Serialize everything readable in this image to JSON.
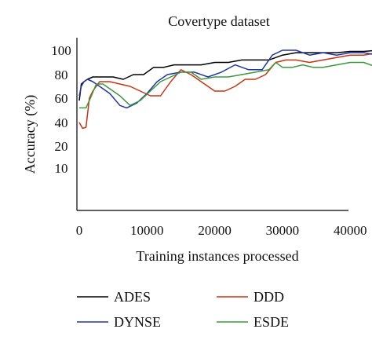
{
  "chart_data": {
    "type": "line",
    "title": "Covertype dataset",
    "xlabel": "Training instances processed",
    "ylabel": "Accuracy (%)",
    "xlim": [
      0,
      50000
    ],
    "ylim": [
      0,
      100
    ],
    "xticks": [
      {
        "value": 0,
        "label": "0"
      },
      {
        "value": 10000,
        "label": "10000"
      },
      {
        "value": 20000,
        "label": "20000"
      },
      {
        "value": 30000,
        "label": "30000"
      },
      {
        "value": 40000,
        "label": "40000"
      }
    ],
    "yticks": [
      {
        "value": 10,
        "label": "10"
      },
      {
        "value": 20,
        "label": "20"
      },
      {
        "value": 40,
        "label": "40"
      },
      {
        "value": 60,
        "label": "60"
      },
      {
        "value": 80,
        "label": "80"
      },
      {
        "value": 100,
        "label": "100"
      }
    ],
    "grid": false,
    "legend_position": "bottom",
    "series": [
      {
        "name": "ADES",
        "color": "#000000",
        "x": [
          0,
          300,
          700,
          1200,
          2000,
          3500,
          5000,
          6500,
          8000,
          9500,
          11000,
          12500,
          14000,
          16000,
          18000,
          20000,
          22000,
          24000,
          26000,
          28000,
          30000,
          32000,
          34000,
          36000,
          38000,
          40000,
          42000,
          44000,
          46000,
          48000,
          49000
        ],
        "y": [
          58,
          72,
          74,
          76,
          78,
          78,
          78,
          76,
          80,
          80,
          86,
          86,
          88,
          88,
          88,
          90,
          90,
          92,
          92,
          92,
          96,
          98,
          98,
          98,
          98,
          99,
          99,
          100,
          100,
          101,
          103
        ]
      },
      {
        "name": "DDD",
        "color": "#cc3311",
        "x": [
          0,
          500,
          1000,
          1500,
          2000,
          3000,
          4500,
          6000,
          7500,
          9000,
          10500,
          12000,
          13500,
          15000,
          16500,
          18000,
          20000,
          21500,
          23000,
          24500,
          26000,
          27500,
          29000,
          30500,
          32000,
          34000,
          36000,
          38000,
          40000,
          42000,
          44000,
          46000,
          48000,
          49000
        ],
        "y": [
          40,
          35,
          36,
          60,
          66,
          74,
          74,
          72,
          70,
          66,
          62,
          62,
          74,
          84,
          80,
          74,
          66,
          66,
          70,
          76,
          76,
          80,
          90,
          92,
          92,
          90,
          92,
          94,
          96,
          96,
          98,
          98,
          97,
          97
        ]
      },
      {
        "name": "DYNSE",
        "color": "#2233aa",
        "x": [
          0,
          300,
          700,
          1200,
          2000,
          3000,
          4500,
          6000,
          7000,
          8500,
          10000,
          11500,
          13000,
          15000,
          17000,
          19000,
          21000,
          23000,
          25000,
          27000,
          28500,
          30000,
          32000,
          34000,
          36000,
          38000,
          40000,
          42000,
          44000,
          46000,
          48000
        ],
        "y": [
          62,
          70,
          74,
          76,
          74,
          70,
          64,
          54,
          52,
          56,
          64,
          74,
          80,
          82,
          82,
          78,
          82,
          88,
          84,
          84,
          96,
          100,
          100,
          96,
          98,
          96,
          98,
          98,
          96,
          98,
          98
        ]
      },
      {
        "name": "ESDE",
        "color": "#3a9a3a",
        "x": [
          0,
          1000,
          1800,
          2500,
          3500,
          4500,
          6000,
          7500,
          9000,
          10500,
          12000,
          13500,
          15000,
          16500,
          18000,
          20000,
          22000,
          24000,
          26000,
          28000,
          29000,
          30000,
          31500,
          33000,
          34500,
          36000,
          38000,
          40000,
          42000,
          44000,
          45000,
          46000,
          48000
        ],
        "y": [
          52,
          52,
          62,
          72,
          72,
          68,
          62,
          54,
          58,
          66,
          74,
          78,
          82,
          82,
          76,
          78,
          78,
          80,
          82,
          84,
          90,
          86,
          86,
          88,
          86,
          86,
          88,
          90,
          90,
          86,
          88,
          86,
          86
        ]
      }
    ]
  }
}
